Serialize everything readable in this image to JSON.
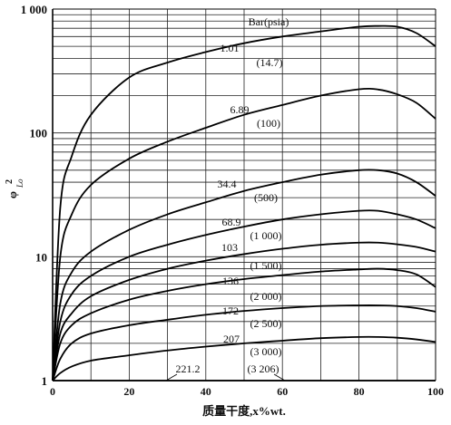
{
  "chart_data": {
    "type": "line",
    "title": "",
    "xlabel": "质量干度,x%wt.",
    "ylabel": "φ",
    "ylabel_sup": "2",
    "ylabel_sub": "Lo",
    "yscale": "log",
    "xlim": [
      0,
      100
    ],
    "ylim": [
      1,
      1000
    ],
    "grid": true,
    "x_ticks": [
      "0",
      "20",
      "40",
      "60",
      "80",
      "100"
    ],
    "y_ticks": [
      {
        "value": 1,
        "label": "1"
      },
      {
        "value": 10,
        "label": "10"
      },
      {
        "value": 100,
        "label": "100"
      },
      {
        "value": 1000,
        "label": "1 000"
      }
    ],
    "annotation_header": "Bar(psia)",
    "series": [
      {
        "name": "1.01",
        "psia": "(14.7)",
        "x": [
          0,
          2,
          5,
          10,
          20,
          30,
          40,
          50,
          60,
          70,
          80,
          85,
          90,
          95,
          100
        ],
        "y": [
          1,
          25,
          65,
          140,
          280,
          370,
          450,
          530,
          600,
          660,
          720,
          730,
          720,
          640,
          500
        ]
      },
      {
        "name": "6.89",
        "psia": "(100)",
        "x": [
          0,
          2,
          5,
          10,
          20,
          30,
          40,
          50,
          60,
          70,
          80,
          85,
          90,
          95,
          100
        ],
        "y": [
          1,
          10,
          22,
          38,
          62,
          85,
          110,
          140,
          168,
          200,
          225,
          224,
          205,
          175,
          130
        ]
      },
      {
        "name": "34.4",
        "psia": "(500)",
        "x": [
          0,
          2,
          5,
          10,
          20,
          30,
          40,
          50,
          60,
          70,
          80,
          85,
          90,
          95,
          100
        ],
        "y": [
          1,
          4.2,
          7.5,
          11,
          16.5,
          22,
          27.5,
          34,
          40,
          46,
          50,
          50,
          47,
          40,
          31
        ]
      },
      {
        "name": "68.9",
        "psia": "(1 000)",
        "x": [
          0,
          2,
          5,
          10,
          20,
          30,
          40,
          50,
          60,
          70,
          80,
          85,
          90,
          95,
          100
        ],
        "y": [
          1,
          3,
          5,
          7,
          10,
          12.5,
          15,
          17.5,
          20,
          22,
          23.5,
          23.5,
          22,
          20,
          17
        ]
      },
      {
        "name": "103",
        "psia": "(1 500)",
        "x": [
          0,
          2,
          5,
          10,
          20,
          30,
          40,
          50,
          60,
          70,
          80,
          85,
          90,
          95,
          100
        ],
        "y": [
          1,
          2.4,
          3.5,
          4.8,
          6.5,
          8,
          9.3,
          10.5,
          11.6,
          12.5,
          13,
          13,
          12.6,
          12,
          11
        ]
      },
      {
        "name": "136",
        "psia": "(2 000)",
        "x": [
          0,
          2,
          5,
          10,
          20,
          30,
          40,
          50,
          60,
          70,
          80,
          85,
          90,
          95,
          100
        ],
        "y": [
          1,
          2,
          2.8,
          3.5,
          4.5,
          5.3,
          6,
          6.6,
          7.1,
          7.6,
          7.9,
          8,
          7.8,
          7.2,
          5.7
        ]
      },
      {
        "name": "172",
        "psia": "(2 500)",
        "x": [
          0,
          2,
          5,
          10,
          20,
          30,
          40,
          50,
          60,
          70,
          80,
          85,
          90,
          95,
          100
        ],
        "y": [
          1,
          1.5,
          2,
          2.4,
          2.8,
          3.1,
          3.4,
          3.65,
          3.85,
          4,
          4.05,
          4.05,
          4,
          3.85,
          3.6
        ]
      },
      {
        "name": "207",
        "psia": "(3 000)",
        "x": [
          0,
          2,
          5,
          10,
          20,
          30,
          40,
          50,
          60,
          70,
          80,
          85,
          90,
          95,
          100
        ],
        "y": [
          1,
          1.15,
          1.3,
          1.45,
          1.6,
          1.75,
          1.88,
          2,
          2.1,
          2.2,
          2.25,
          2.25,
          2.22,
          2.15,
          2.05
        ]
      },
      {
        "name": "221.2",
        "psia": "(3 206)",
        "x": [
          0,
          100
        ],
        "y": [
          1,
          1
        ]
      }
    ]
  }
}
